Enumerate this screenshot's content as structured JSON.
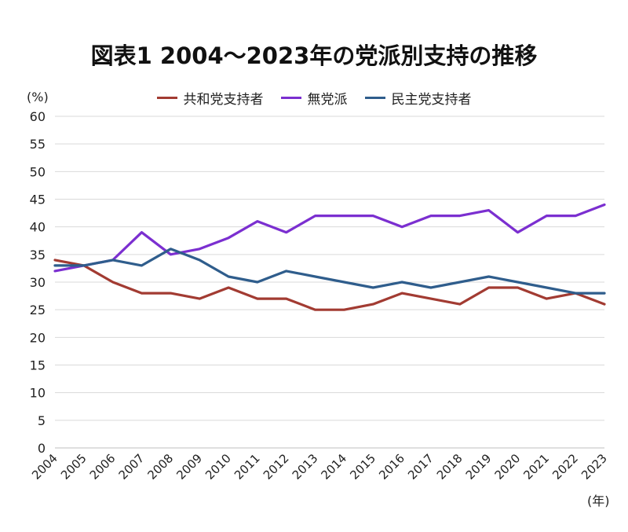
{
  "chart_data": {
    "type": "line",
    "title": "図表1  2004～2023年の党派別支持の推移",
    "ylabel": "(%)",
    "xlabel": "(年)",
    "ylim": [
      0,
      60
    ],
    "yticks": [
      0,
      5,
      10,
      15,
      20,
      25,
      30,
      35,
      40,
      45,
      50,
      55,
      60
    ],
    "grid": true,
    "legend_position": "top-center",
    "categories": [
      "2004",
      "2005",
      "2006",
      "2007",
      "2008",
      "2009",
      "2010",
      "2011",
      "2012",
      "2013",
      "2014",
      "2015",
      "2016",
      "2017",
      "2018",
      "2019",
      "2020",
      "2021",
      "2022",
      "2023"
    ],
    "series": [
      {
        "name": "共和党支持者",
        "color": "#a23b32",
        "values": [
          34,
          33,
          30,
          28,
          28,
          27,
          29,
          27,
          27,
          25,
          25,
          26,
          28,
          27,
          26,
          29,
          29,
          27,
          28,
          26
        ]
      },
      {
        "name": "無党派",
        "color": "#7b2fd0",
        "values": [
          32,
          33,
          34,
          39,
          35,
          36,
          38,
          41,
          39,
          42,
          42,
          42,
          40,
          42,
          42,
          43,
          39,
          42,
          42,
          44
        ]
      },
      {
        "name": "民主党支持者",
        "color": "#2f5d8c",
        "values": [
          33,
          33,
          34,
          33,
          36,
          34,
          31,
          30,
          32,
          31,
          30,
          29,
          30,
          29,
          30,
          31,
          30,
          29,
          28,
          28
        ]
      }
    ]
  }
}
